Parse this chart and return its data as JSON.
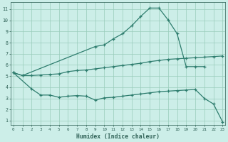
{
  "xlabel": "Humidex (Indice chaleur)",
  "bg_color": "#cceee8",
  "line_color": "#2e7d6e",
  "grid_color": "#99ccbb",
  "xticks": [
    0,
    1,
    2,
    3,
    4,
    5,
    6,
    7,
    8,
    9,
    10,
    11,
    12,
    13,
    14,
    15,
    16,
    17,
    18,
    19,
    20,
    21,
    22,
    23
  ],
  "yticks": [
    1,
    2,
    3,
    4,
    5,
    6,
    7,
    8,
    9,
    10,
    11
  ],
  "xlim": [
    -0.3,
    23.3
  ],
  "ylim": [
    0.6,
    11.6
  ],
  "upper_x": [
    0,
    1,
    9,
    10,
    11,
    12,
    13,
    14,
    15,
    16,
    17,
    18,
    19,
    20,
    21
  ],
  "upper_y": [
    5.3,
    5.05,
    7.65,
    7.8,
    8.35,
    8.8,
    9.5,
    10.35,
    11.1,
    11.1,
    10.05,
    8.8,
    5.85,
    5.85,
    5.85
  ],
  "mid_x": [
    0,
    1,
    2,
    3,
    4,
    5,
    6,
    7,
    8,
    9,
    10,
    11,
    12,
    13,
    14,
    15,
    16,
    17,
    18,
    19,
    20,
    21,
    22,
    23
  ],
  "mid_y": [
    5.3,
    5.05,
    5.05,
    5.1,
    5.15,
    5.2,
    5.4,
    5.5,
    5.55,
    5.65,
    5.75,
    5.85,
    5.95,
    6.05,
    6.15,
    6.3,
    6.4,
    6.5,
    6.55,
    6.6,
    6.65,
    6.7,
    6.75,
    6.8
  ],
  "low_x": [
    0,
    2,
    3,
    4,
    5,
    6,
    7,
    8,
    9,
    10,
    11,
    12,
    13,
    14,
    15,
    16,
    17,
    18,
    19,
    20,
    21,
    22,
    23
  ],
  "low_y": [
    5.3,
    3.85,
    3.3,
    3.3,
    3.1,
    3.2,
    3.25,
    3.2,
    2.85,
    3.05,
    3.1,
    3.2,
    3.3,
    3.4,
    3.5,
    3.6,
    3.65,
    3.7,
    3.75,
    3.8,
    3.0,
    2.5,
    0.9
  ]
}
